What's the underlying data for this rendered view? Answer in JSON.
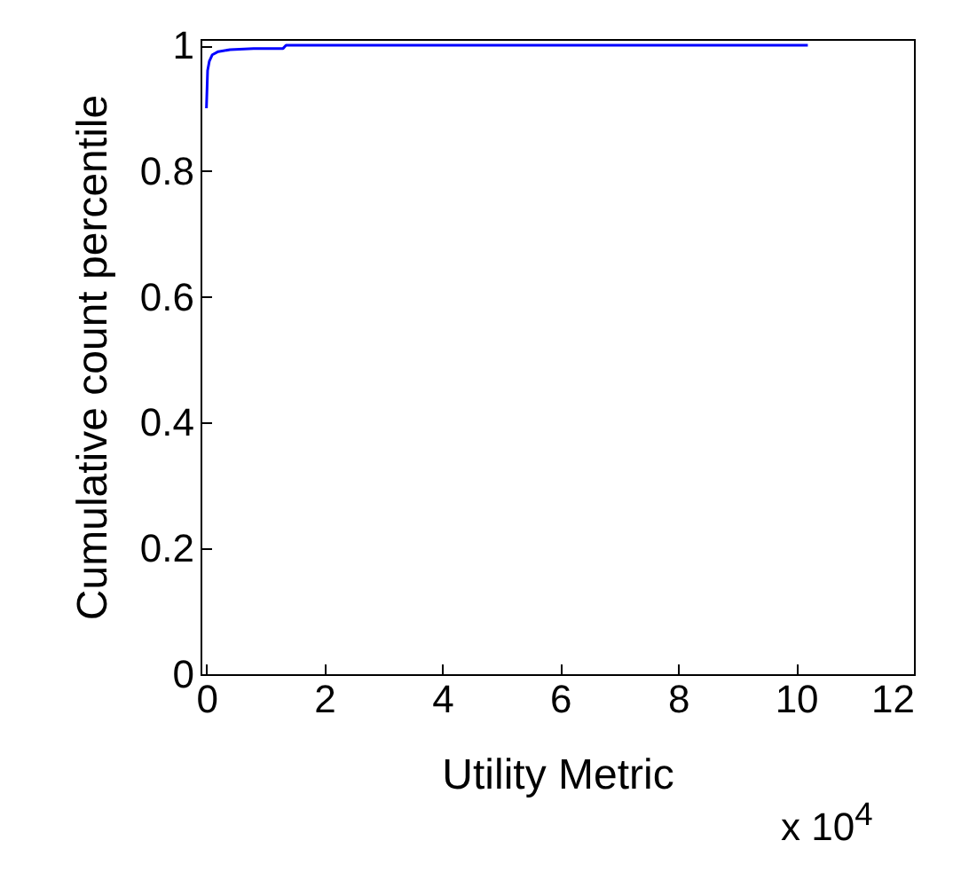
{
  "chart_data": {
    "type": "line",
    "xlabel": "Utility Metric",
    "ylabel": "Cumulative count percentile",
    "annotations": [
      "x 10$^{4}$"
    ],
    "series": [
      {
        "color": "#0000ff",
        "x": [
          0,
          0.02,
          0.05,
          0.1,
          0.2,
          0.4,
          0.8,
          1.3,
          1.35,
          10.2
        ],
        "values": [
          0.9,
          0.96,
          0.975,
          0.985,
          0.99,
          0.993,
          0.995,
          0.995,
          1,
          1
        ]
      }
    ],
    "xlim": [
      -0.1,
      12
    ],
    "xticks": [
      0,
      2,
      4,
      6,
      8,
      10,
      12
    ],
    "ylim": [
      0,
      1.01
    ],
    "yticks": [
      0,
      0.2,
      0.4,
      0.6,
      0.8,
      1
    ],
    "grid": false,
    "marker": "none",
    "line_style": "solid"
  }
}
